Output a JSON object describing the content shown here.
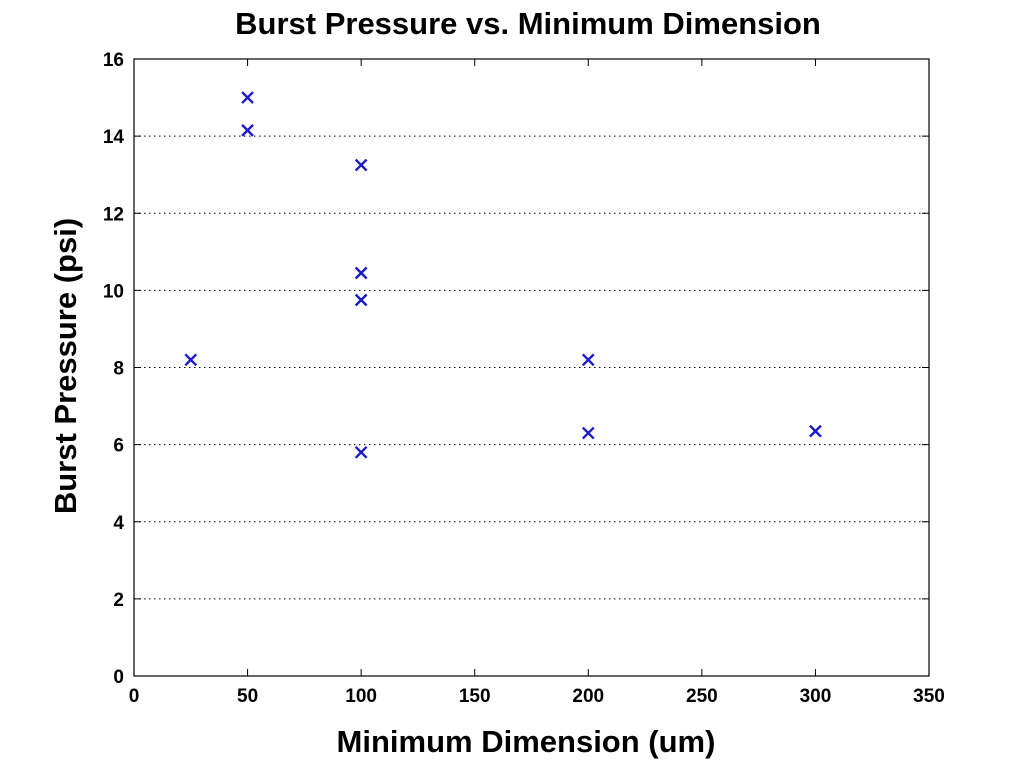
{
  "chart_data": {
    "type": "scatter",
    "title": "Burst Pressure vs. Minimum Dimension",
    "xlabel": "Minimum Dimension (um)",
    "ylabel": "Burst Pressure (psi)",
    "xlim": [
      0,
      350
    ],
    "ylim": [
      0,
      16
    ],
    "xticks": [
      "0",
      "50",
      "100",
      "150",
      "200",
      "250",
      "300",
      "350"
    ],
    "yticks": [
      "0",
      "2",
      "4",
      "6",
      "8",
      "10",
      "12",
      "14",
      "16"
    ],
    "grid": "horizontal dotted",
    "marker": "x",
    "marker_color": "#1a1acc",
    "series": [
      {
        "points": [
          {
            "x": 25,
            "y": 8.2
          },
          {
            "x": 50,
            "y": 15.0
          },
          {
            "x": 50,
            "y": 14.15
          },
          {
            "x": 100,
            "y": 13.25
          },
          {
            "x": 100,
            "y": 10.45
          },
          {
            "x": 100,
            "y": 9.75
          },
          {
            "x": 100,
            "y": 5.8
          },
          {
            "x": 200,
            "y": 8.2
          },
          {
            "x": 200,
            "y": 6.3
          },
          {
            "x": 300,
            "y": 6.35
          }
        ]
      }
    ]
  }
}
